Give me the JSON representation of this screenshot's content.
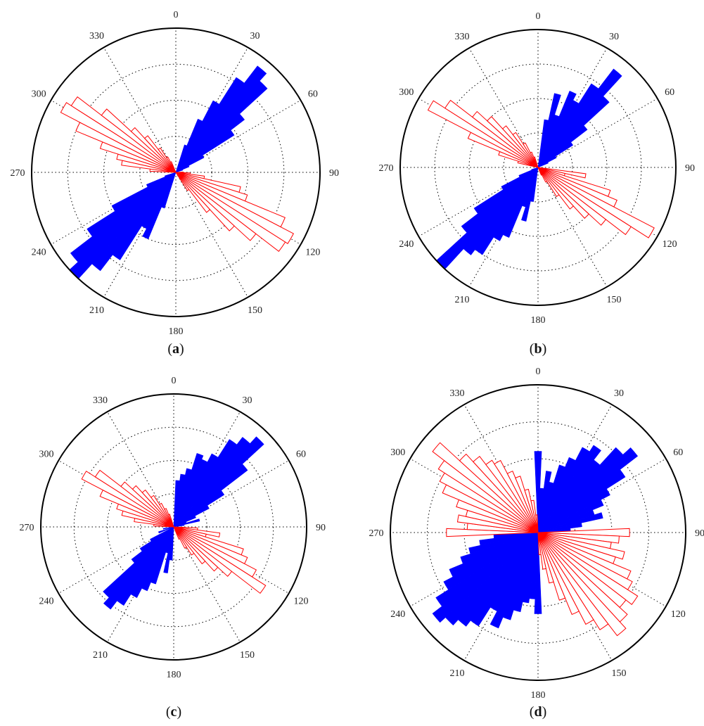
{
  "figure": {
    "colors": {
      "northeast": "#0000ff",
      "northwest": "#ff0000",
      "frame": "#000000"
    },
    "theta_ticks": [
      "0",
      "30",
      "60",
      "90",
      "120",
      "150",
      "180",
      "210",
      "240",
      "270",
      "300",
      "330"
    ]
  },
  "chart_data": [
    {
      "type": "rose",
      "caption_open": "(",
      "caption_letter": "a",
      "caption_close": ")",
      "direction": "clockwise",
      "zero_at": "top",
      "rlim": [
        0,
        1
      ],
      "grid": true,
      "series": [
        {
          "color": "#0000ff",
          "fill": "solid",
          "bins": [
            [
              20,
              0.2
            ],
            [
              25,
              0.4
            ],
            [
              30,
              0.56
            ],
            [
              35,
              0.78
            ],
            [
              40,
              0.93
            ],
            [
              45,
              0.86
            ],
            [
              50,
              0.6
            ],
            [
              55,
              0.48
            ],
            [
              60,
              0.22
            ],
            [
              65,
              0.1
            ],
            [
              70,
              0.05
            ],
            [
              200,
              0.26
            ],
            [
              205,
              0.5
            ],
            [
              210,
              0.44
            ],
            [
              215,
              0.72
            ],
            [
              220,
              0.86
            ],
            [
              225,
              1.0
            ],
            [
              230,
              0.92
            ],
            [
              235,
              0.73
            ],
            [
              240,
              0.5
            ],
            [
              245,
              0.22
            ],
            [
              250,
              0.08
            ]
          ]
        },
        {
          "color": "#ff0000",
          "fill": "outline",
          "bins": [
            [
              90,
              0.05
            ],
            [
              95,
              0.1
            ],
            [
              100,
              0.2
            ],
            [
              105,
              0.46
            ],
            [
              110,
              0.52
            ],
            [
              115,
              0.82
            ],
            [
              120,
              0.92
            ],
            [
              125,
              0.9
            ],
            [
              130,
              0.7
            ],
            [
              135,
              0.55
            ],
            [
              140,
              0.35
            ],
            [
              145,
              0.15
            ],
            [
              275,
              0.18
            ],
            [
              280,
              0.38
            ],
            [
              285,
              0.42
            ],
            [
              290,
              0.55
            ],
            [
              295,
              0.75
            ],
            [
              300,
              0.9
            ],
            [
              305,
              0.86
            ],
            [
              310,
              0.65
            ],
            [
              315,
              0.42
            ],
            [
              320,
              0.32
            ],
            [
              325,
              0.2
            ],
            [
              330,
              0.12
            ],
            [
              335,
              0.08
            ]
          ]
        }
      ]
    },
    {
      "type": "rose",
      "caption_open": "(",
      "caption_letter": "b",
      "caption_close": ")",
      "direction": "clockwise",
      "zero_at": "top",
      "rlim": [
        0,
        1
      ],
      "grid": true,
      "series": [
        {
          "color": "#0000ff",
          "fill": "solid",
          "bins": [
            [
              10,
              0.35
            ],
            [
              15,
              0.55
            ],
            [
              20,
              0.4
            ],
            [
              25,
              0.6
            ],
            [
              30,
              0.55
            ],
            [
              35,
              0.72
            ],
            [
              40,
              0.9
            ],
            [
              45,
              0.7
            ],
            [
              50,
              0.45
            ],
            [
              55,
              0.3
            ],
            [
              60,
              0.15
            ],
            [
              65,
              0.08
            ],
            [
              190,
              0.25
            ],
            [
              195,
              0.4
            ],
            [
              200,
              0.3
            ],
            [
              205,
              0.55
            ],
            [
              210,
              0.6
            ],
            [
              215,
              0.75
            ],
            [
              220,
              0.8
            ],
            [
              225,
              1.0
            ],
            [
              230,
              0.7
            ],
            [
              235,
              0.55
            ],
            [
              240,
              0.3
            ],
            [
              245,
              0.15
            ],
            [
              250,
              0.05
            ]
          ]
        },
        {
          "color": "#ff0000",
          "fill": "outline",
          "bins": [
            [
              100,
              0.35
            ],
            [
              105,
              0.2
            ],
            [
              110,
              0.55
            ],
            [
              115,
              0.62
            ],
            [
              120,
              0.95
            ],
            [
              125,
              0.8
            ],
            [
              130,
              0.62
            ],
            [
              135,
              0.5
            ],
            [
              140,
              0.38
            ],
            [
              145,
              0.25
            ],
            [
              150,
              0.12
            ],
            [
              155,
              0.06
            ],
            [
              285,
              0.15
            ],
            [
              290,
              0.3
            ],
            [
              295,
              0.55
            ],
            [
              300,
              0.9
            ],
            [
              305,
              0.8
            ],
            [
              310,
              0.6
            ],
            [
              315,
              0.5
            ],
            [
              320,
              0.38
            ],
            [
              325,
              0.3
            ],
            [
              330,
              0.2
            ],
            [
              335,
              0.12
            ],
            [
              340,
              0.08
            ]
          ]
        }
      ]
    },
    {
      "type": "rose",
      "caption_open": "(",
      "caption_letter": "c",
      "caption_close": ")",
      "direction": "clockwise",
      "zero_at": "top",
      "rlim": [
        0,
        1
      ],
      "grid": true,
      "series": [
        {
          "color": "#0000ff",
          "fill": "solid",
          "bins": [
            [
              5,
              0.35
            ],
            [
              10,
              0.4
            ],
            [
              15,
              0.45
            ],
            [
              20,
              0.58
            ],
            [
              25,
              0.55
            ],
            [
              30,
              0.62
            ],
            [
              35,
              0.78
            ],
            [
              40,
              0.85
            ],
            [
              45,
              0.92
            ],
            [
              50,
              0.7
            ],
            [
              55,
              0.45
            ],
            [
              60,
              0.3
            ],
            [
              65,
              0.18
            ],
            [
              70,
              0.1
            ],
            [
              75,
              0.2
            ],
            [
              80,
              0.08
            ],
            [
              185,
              0.25
            ],
            [
              190,
              0.35
            ],
            [
              195,
              0.2
            ],
            [
              200,
              0.45
            ],
            [
              205,
              0.52
            ],
            [
              210,
              0.6
            ],
            [
              215,
              0.7
            ],
            [
              220,
              0.78
            ],
            [
              225,
              0.72
            ],
            [
              230,
              0.4
            ],
            [
              235,
              0.3
            ],
            [
              240,
              0.2
            ],
            [
              250,
              0.12
            ],
            [
              260,
              0.08
            ]
          ]
        },
        {
          "color": "#ff0000",
          "fill": "outline",
          "bins": [
            [
              95,
              0.18
            ],
            [
              100,
              0.35
            ],
            [
              105,
              0.25
            ],
            [
              110,
              0.55
            ],
            [
              115,
              0.6
            ],
            [
              120,
              0.7
            ],
            [
              125,
              0.82
            ],
            [
              130,
              0.55
            ],
            [
              135,
              0.45
            ],
            [
              140,
              0.35
            ],
            [
              145,
              0.25
            ],
            [
              150,
              0.18
            ],
            [
              155,
              0.1
            ],
            [
              275,
              0.15
            ],
            [
              280,
              0.3
            ],
            [
              285,
              0.4
            ],
            [
              290,
              0.45
            ],
            [
              295,
              0.6
            ],
            [
              300,
              0.78
            ],
            [
              305,
              0.7
            ],
            [
              310,
              0.5
            ],
            [
              315,
              0.42
            ],
            [
              320,
              0.35
            ],
            [
              325,
              0.28
            ],
            [
              330,
              0.2
            ],
            [
              335,
              0.15
            ],
            [
              340,
              0.1
            ]
          ]
        }
      ]
    },
    {
      "type": "rose",
      "caption_open": "(",
      "caption_letter": "d",
      "caption_close": ")",
      "direction": "clockwise",
      "zero_at": "top",
      "rlim": [
        0,
        1
      ],
      "grid": true,
      "series": [
        {
          "color": "#0000ff",
          "fill": "solid",
          "bins": [
            [
              0,
              0.55
            ],
            [
              5,
              0.3
            ],
            [
              10,
              0.42
            ],
            [
              15,
              0.35
            ],
            [
              20,
              0.48
            ],
            [
              25,
              0.55
            ],
            [
              30,
              0.65
            ],
            [
              35,
              0.7
            ],
            [
              40,
              0.62
            ],
            [
              45,
              0.78
            ],
            [
              50,
              0.85
            ],
            [
              55,
              0.7
            ],
            [
              60,
              0.55
            ],
            [
              65,
              0.48
            ],
            [
              70,
              0.4
            ],
            [
              75,
              0.45
            ],
            [
              80,
              0.3
            ],
            [
              85,
              0.22
            ],
            [
              180,
              0.55
            ],
            [
              185,
              0.45
            ],
            [
              190,
              0.48
            ],
            [
              195,
              0.55
            ],
            [
              200,
              0.62
            ],
            [
              205,
              0.7
            ],
            [
              210,
              0.6
            ],
            [
              215,
              0.75
            ],
            [
              220,
              0.8
            ],
            [
              225,
              0.85
            ],
            [
              230,
              0.9
            ],
            [
              235,
              0.82
            ],
            [
              240,
              0.72
            ],
            [
              245,
              0.65
            ],
            [
              250,
              0.55
            ],
            [
              255,
              0.48
            ],
            [
              260,
              0.4
            ],
            [
              265,
              0.3
            ]
          ]
        },
        {
          "color": "#ff0000",
          "fill": "outline",
          "bins": [
            [
              90,
              0.62
            ],
            [
              95,
              0.55
            ],
            [
              100,
              0.5
            ],
            [
              105,
              0.6
            ],
            [
              110,
              0.55
            ],
            [
              115,
              0.68
            ],
            [
              120,
              0.72
            ],
            [
              125,
              0.8
            ],
            [
              130,
              0.75
            ],
            [
              135,
              0.82
            ],
            [
              140,
              0.88
            ],
            [
              145,
              0.78
            ],
            [
              150,
              0.7
            ],
            [
              155,
              0.6
            ],
            [
              160,
              0.48
            ],
            [
              165,
              0.35
            ],
            [
              170,
              0.25
            ],
            [
              175,
              0.15
            ],
            [
              270,
              0.62
            ],
            [
              275,
              0.48
            ],
            [
              280,
              0.55
            ],
            [
              285,
              0.5
            ],
            [
              290,
              0.58
            ],
            [
              295,
              0.7
            ],
            [
              300,
              0.75
            ],
            [
              305,
              0.8
            ],
            [
              310,
              0.9
            ],
            [
              315,
              0.72
            ],
            [
              320,
              0.65
            ],
            [
              325,
              0.58
            ],
            [
              330,
              0.55
            ],
            [
              335,
              0.45
            ],
            [
              340,
              0.4
            ],
            [
              345,
              0.3
            ],
            [
              350,
              0.22
            ],
            [
              355,
              0.12
            ]
          ]
        }
      ]
    }
  ]
}
